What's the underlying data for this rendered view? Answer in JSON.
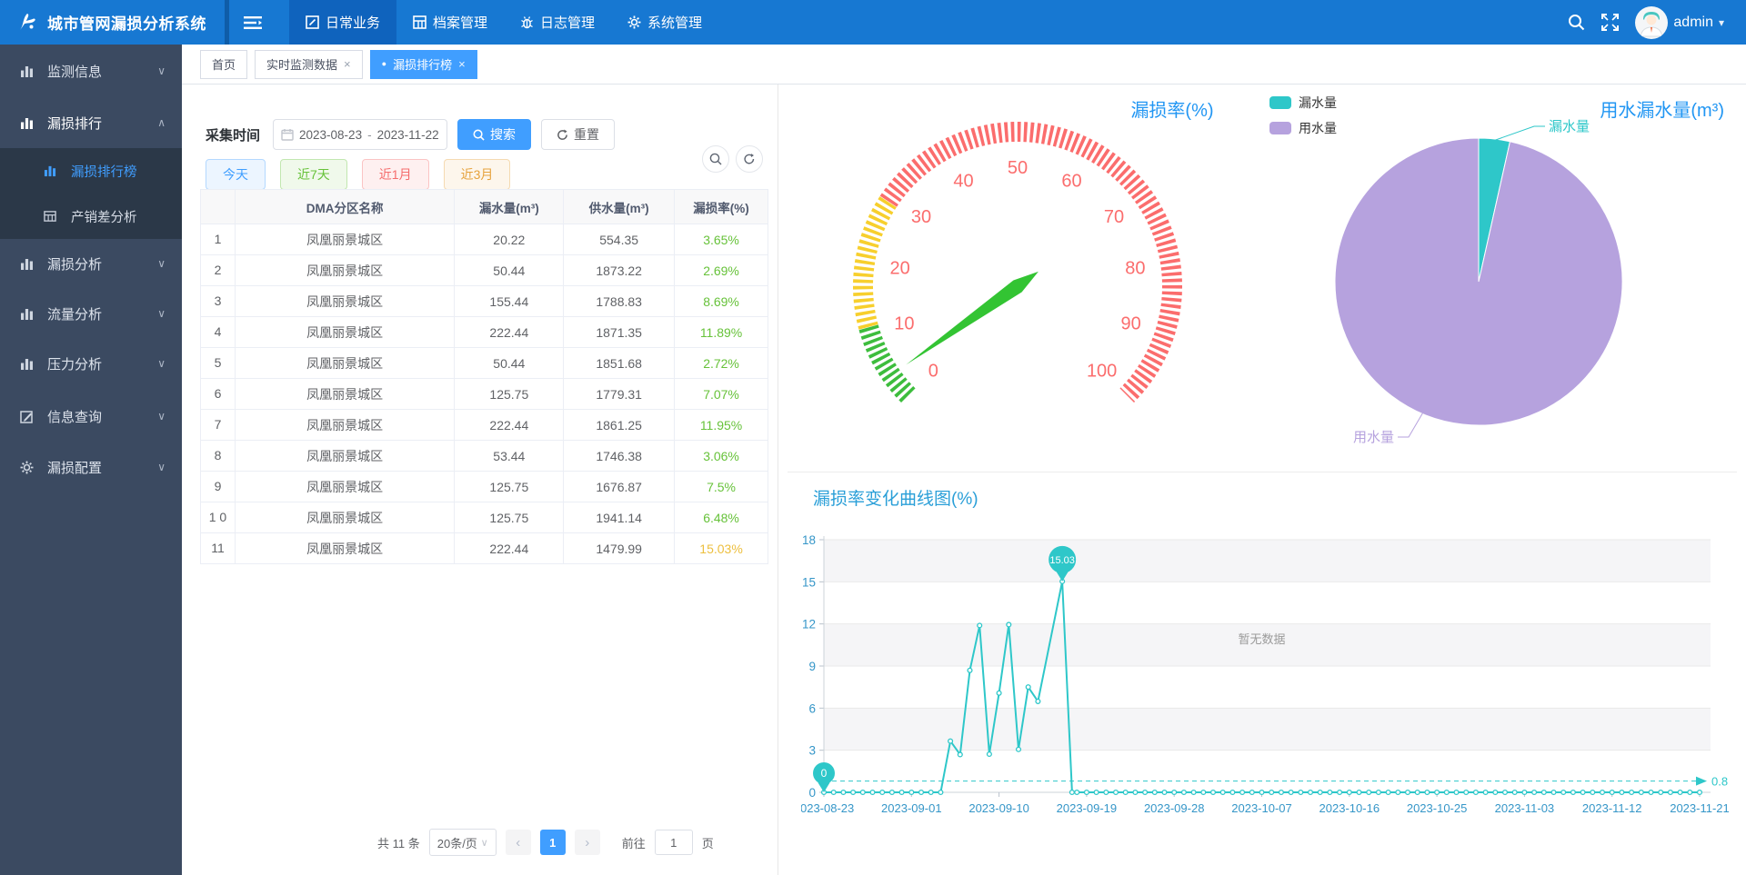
{
  "icons": {
    "close": "×",
    "dot": "●",
    "chevron_down": "∨",
    "chevron_up": "∧",
    "caret_down": "▾",
    "prev": "‹",
    "next": "›",
    "select_caret": "∨"
  },
  "navbar": {
    "brand": "城市管网漏损分析系统",
    "menus": [
      {
        "label": "日常业务",
        "active": true,
        "icon": "edit-square-icon"
      },
      {
        "label": "档案管理",
        "active": false,
        "icon": "grid-icon"
      },
      {
        "label": "日志管理",
        "active": false,
        "icon": "log-bug-icon"
      },
      {
        "label": "系统管理",
        "active": false,
        "icon": "gear-icon"
      }
    ],
    "user": "admin"
  },
  "sidebar": {
    "items": [
      {
        "label": "监测信息",
        "chevron": "down"
      },
      {
        "label": "漏损排行",
        "chevron": "up"
      },
      {
        "label": "漏损分析",
        "chevron": "down"
      },
      {
        "label": "流量分析",
        "chevron": "down"
      },
      {
        "label": "压力分析",
        "chevron": "down"
      },
      {
        "label": "信息查询",
        "chevron": "down"
      },
      {
        "label": "漏损配置",
        "chevron": "down"
      }
    ],
    "submenu": [
      {
        "label": "漏损排行榜",
        "active": true
      },
      {
        "label": "产销差分析",
        "active": false
      }
    ]
  },
  "tabs": [
    {
      "label": "首页"
    },
    {
      "label": "实时监测数据"
    },
    {
      "label": "漏损排行榜"
    }
  ],
  "filter": {
    "label": "采集时间",
    "date_start": "2023-08-23",
    "date_sep": "-",
    "date_end": "2023-11-22",
    "search_label": "搜索",
    "reset_label": "重置",
    "quick": [
      {
        "label": "今天",
        "color": "blue"
      },
      {
        "label": "近7天",
        "color": "green"
      },
      {
        "label": "近1月",
        "color": "red"
      },
      {
        "label": "近3月",
        "color": "yellow"
      }
    ]
  },
  "table": {
    "headers": [
      "",
      "DMA分区名称",
      "漏水量(m³)",
      "供水量(m³)",
      "漏损率(%)"
    ],
    "rows": [
      {
        "idx": "1",
        "name": "凤凰丽景城区",
        "leak": "20.22",
        "supply": "554.35",
        "rate": "3.65%",
        "rate_color": "green"
      },
      {
        "idx": "2",
        "name": "凤凰丽景城区",
        "leak": "50.44",
        "supply": "1873.22",
        "rate": "2.69%",
        "rate_color": "green"
      },
      {
        "idx": "3",
        "name": "凤凰丽景城区",
        "leak": "155.44",
        "supply": "1788.83",
        "rate": "8.69%",
        "rate_color": "green"
      },
      {
        "idx": "4",
        "name": "凤凰丽景城区",
        "leak": "222.44",
        "supply": "1871.35",
        "rate": "11.89%",
        "rate_color": "green"
      },
      {
        "idx": "5",
        "name": "凤凰丽景城区",
        "leak": "50.44",
        "supply": "1851.68",
        "rate": "2.72%",
        "rate_color": "green"
      },
      {
        "idx": "6",
        "name": "凤凰丽景城区",
        "leak": "125.75",
        "supply": "1779.31",
        "rate": "7.07%",
        "rate_color": "green"
      },
      {
        "idx": "7",
        "name": "凤凰丽景城区",
        "leak": "222.44",
        "supply": "1861.25",
        "rate": "11.95%",
        "rate_color": "green"
      },
      {
        "idx": "8",
        "name": "凤凰丽景城区",
        "leak": "53.44",
        "supply": "1746.38",
        "rate": "3.06%",
        "rate_color": "green"
      },
      {
        "idx": "9",
        "name": "凤凰丽景城区",
        "leak": "125.75",
        "supply": "1676.87",
        "rate": "7.5%",
        "rate_color": "green"
      },
      {
        "idx": "1 0",
        "name": "凤凰丽景城区",
        "leak": "125.75",
        "supply": "1941.14",
        "rate": "6.48%",
        "rate_color": "green"
      },
      {
        "idx": "11",
        "name": "凤凰丽景城区",
        "leak": "222.44",
        "supply": "1479.99",
        "rate": "15.03%",
        "rate_color": "yellow"
      }
    ]
  },
  "pagination": {
    "total": "共 11 条",
    "page_size": "20条/页",
    "page": "1",
    "goto_prefix": "前往",
    "goto_value": "1",
    "goto_suffix": "页"
  },
  "chart_data": [
    {
      "type": "gauge",
      "title": "漏损率(%)",
      "min": 0,
      "max": 100,
      "ticks": [
        0,
        10,
        20,
        30,
        40,
        50,
        60,
        70,
        80,
        90,
        100
      ],
      "value": 3.65,
      "segments": [
        {
          "up_to": 11,
          "color": "#3dbd3d"
        },
        {
          "up_to": 29,
          "color": "#f7cf2d"
        },
        {
          "up_to": 100,
          "color": "#fb6d6d"
        }
      ],
      "tick_label_color": "#fb6d6d",
      "needle_color": "#33c433",
      "title_color": "#2196f3"
    },
    {
      "type": "pie",
      "title": "用水漏水量(m³)",
      "legend": [
        "漏水量",
        "用水量"
      ],
      "series": [
        {
          "name": "漏水量",
          "share": 3.5,
          "color": "#2ec7c9"
        },
        {
          "name": "用水量",
          "share": 96.5,
          "color": "#b6a2de"
        }
      ],
      "title_color": "#2196f3"
    },
    {
      "type": "line",
      "title": "漏损率变化曲线图(%)",
      "title_color": "#2a9fd8",
      "color": "#2ec7c9",
      "ylim": [
        0,
        18
      ],
      "yticks": [
        0,
        3,
        6,
        9,
        12,
        15,
        18
      ],
      "xticks": [
        "2023-08-23",
        "2023-09-01",
        "2023-09-10",
        "2023-09-19",
        "2023-09-28",
        "2023-10-07",
        "2023-10-16",
        "2023-10-25",
        "2023-11-03",
        "2023-11-12",
        "2023-11-21"
      ],
      "days_total": 90,
      "points": [
        [
          0,
          0
        ],
        [
          12,
          0
        ],
        [
          13,
          3.65
        ],
        [
          14,
          2.69
        ],
        [
          15,
          8.69
        ],
        [
          16,
          11.89
        ],
        [
          17,
          2.72
        ],
        [
          18,
          7.07
        ],
        [
          19,
          11.95
        ],
        [
          20,
          3.06
        ],
        [
          21,
          7.5
        ],
        [
          22,
          6.48
        ],
        [
          24.5,
          15.03
        ],
        [
          25.5,
          0
        ],
        [
          90,
          0
        ]
      ],
      "markpoints": [
        {
          "day": 0,
          "value": 0,
          "label": "0"
        },
        {
          "day": 24.5,
          "value": 15.03,
          "label": "15.03"
        }
      ],
      "markline": {
        "value": 0.8,
        "label": "0.8"
      },
      "empty_text": "暂无数据",
      "axis_label_color": "#3596c8",
      "grid": true
    }
  ]
}
